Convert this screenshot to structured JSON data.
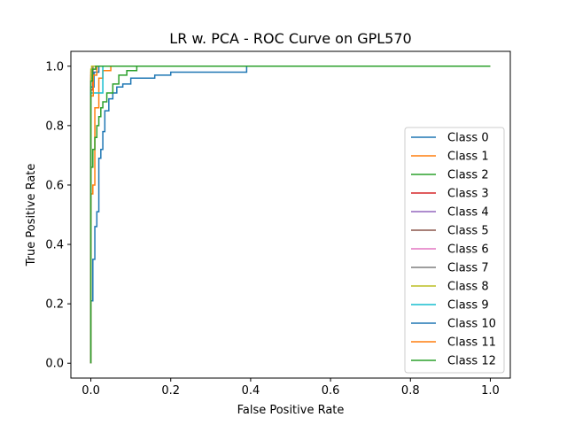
{
  "chart_data": {
    "type": "line",
    "title": "LR w. PCA - ROC Curve on GPL570",
    "xlabel": "False Positive Rate",
    "ylabel": "True Positive Rate",
    "xlim": [
      -0.05,
      1.05
    ],
    "ylim": [
      -0.05,
      1.05
    ],
    "xticks": [
      0.0,
      0.2,
      0.4,
      0.6,
      0.8,
      1.0
    ],
    "yticks": [
      0.0,
      0.2,
      0.4,
      0.6,
      0.8,
      1.0
    ],
    "xtick_labels": [
      "0.0",
      "0.2",
      "0.4",
      "0.6",
      "0.8",
      "1.0"
    ],
    "ytick_labels": [
      "0.0",
      "0.2",
      "0.4",
      "0.6",
      "0.8",
      "1.0"
    ],
    "grid": false,
    "legend_position": "lower-right",
    "series": [
      {
        "name": "Class 0",
        "color": "#1f77b4",
        "x": [
          0.0,
          0.0,
          0.005,
          0.005,
          0.01,
          0.01,
          0.015,
          0.015,
          0.02,
          0.02,
          0.025,
          0.025,
          0.03,
          0.03,
          0.035,
          0.035,
          0.045,
          0.045,
          0.055,
          0.055,
          0.065,
          0.065,
          0.08,
          0.08,
          0.1,
          0.1,
          0.16,
          0.16,
          0.2,
          0.2,
          0.39,
          0.39,
          1.0
        ],
        "y": [
          0.0,
          0.21,
          0.21,
          0.35,
          0.35,
          0.46,
          0.46,
          0.51,
          0.51,
          0.69,
          0.69,
          0.72,
          0.72,
          0.78,
          0.78,
          0.85,
          0.85,
          0.89,
          0.89,
          0.91,
          0.91,
          0.93,
          0.93,
          0.94,
          0.94,
          0.96,
          0.96,
          0.97,
          0.97,
          0.98,
          0.98,
          1.0,
          1.0
        ]
      },
      {
        "name": "Class 1",
        "color": "#ff7f0e",
        "x": [
          0.0,
          0.0,
          0.005,
          0.005,
          0.01,
          0.01,
          0.02,
          0.02,
          0.03,
          0.03,
          0.05,
          0.05,
          1.0
        ],
        "y": [
          0.0,
          0.57,
          0.57,
          0.6,
          0.6,
          0.86,
          0.86,
          0.96,
          0.96,
          0.985,
          0.985,
          1.0,
          1.0
        ]
      },
      {
        "name": "Class 2",
        "color": "#2ca02c",
        "x": [
          0.0,
          0.0,
          0.005,
          0.005,
          0.01,
          0.01,
          0.015,
          0.015,
          0.02,
          0.02,
          0.025,
          0.025,
          0.03,
          0.03,
          0.04,
          0.04,
          0.055,
          0.055,
          0.07,
          0.07,
          0.09,
          0.09,
          0.115,
          0.115,
          1.0
        ],
        "y": [
          0.0,
          0.66,
          0.66,
          0.72,
          0.72,
          0.76,
          0.76,
          0.8,
          0.8,
          0.83,
          0.83,
          0.86,
          0.86,
          0.88,
          0.88,
          0.91,
          0.91,
          0.94,
          0.94,
          0.97,
          0.97,
          0.985,
          0.985,
          1.0,
          1.0
        ]
      },
      {
        "name": "Class 3",
        "color": "#d62728",
        "x": [
          0.0,
          0.0,
          0.005,
          0.005,
          1.0
        ],
        "y": [
          0.0,
          0.92,
          0.92,
          1.0,
          1.0
        ]
      },
      {
        "name": "Class 4",
        "color": "#9467bd",
        "x": [
          0.0,
          0.0,
          0.005,
          0.005,
          1.0
        ],
        "y": [
          0.0,
          0.95,
          0.95,
          1.0,
          1.0
        ]
      },
      {
        "name": "Class 5",
        "color": "#8c564b",
        "x": [
          0.0,
          0.0,
          0.005,
          0.005,
          1.0
        ],
        "y": [
          0.0,
          0.97,
          0.97,
          1.0,
          1.0
        ]
      },
      {
        "name": "Class 6",
        "color": "#e377c2",
        "x": [
          0.0,
          0.0,
          0.003,
          0.003,
          1.0
        ],
        "y": [
          0.0,
          0.98,
          0.98,
          1.0,
          1.0
        ]
      },
      {
        "name": "Class 7",
        "color": "#7f7f7f",
        "x": [
          0.0,
          0.0,
          0.004,
          0.004,
          1.0
        ],
        "y": [
          0.0,
          0.96,
          0.96,
          1.0,
          1.0
        ]
      },
      {
        "name": "Class 8",
        "color": "#bcbd22",
        "x": [
          0.0,
          0.0,
          0.002,
          0.002,
          1.0
        ],
        "y": [
          0.0,
          0.99,
          0.99,
          1.0,
          1.0
        ]
      },
      {
        "name": "Class 9",
        "color": "#17becf",
        "x": [
          0.0,
          0.0,
          0.005,
          0.005,
          0.03,
          0.03,
          1.0
        ],
        "y": [
          0.0,
          0.91,
          0.91,
          0.91,
          0.91,
          1.0,
          1.0
        ]
      },
      {
        "name": "Class 10",
        "color": "#1f77b4",
        "x": [
          0.0,
          0.0,
          0.008,
          0.008,
          0.02,
          0.02,
          1.0
        ],
        "y": [
          0.0,
          0.93,
          0.93,
          0.98,
          0.98,
          1.0,
          1.0
        ]
      },
      {
        "name": "Class 11",
        "color": "#ff7f0e",
        "x": [
          0.0,
          0.0,
          0.006,
          0.006,
          0.015,
          0.015,
          1.0
        ],
        "y": [
          0.0,
          0.9,
          0.9,
          0.97,
          0.97,
          1.0,
          1.0
        ]
      },
      {
        "name": "Class 12",
        "color": "#2ca02c",
        "x": [
          0.0,
          0.0,
          0.004,
          0.004,
          0.012,
          0.012,
          1.0
        ],
        "y": [
          0.0,
          0.95,
          0.95,
          0.99,
          0.99,
          1.0,
          1.0
        ]
      }
    ]
  }
}
